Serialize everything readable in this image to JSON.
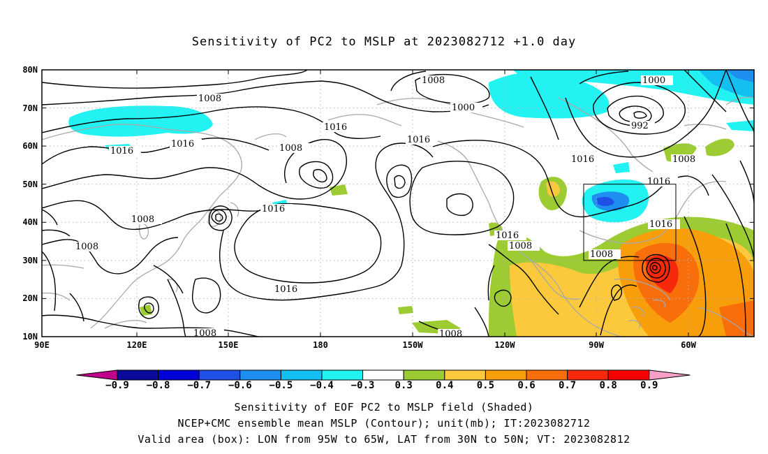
{
  "title": "Sensitivity of PC2 to MSLP at 2023082712 +1.0 day",
  "lat_labels": [
    "80N",
    "70N",
    "60N",
    "50N",
    "40N",
    "30N",
    "20N",
    "10N"
  ],
  "lon_labels": [
    "90E",
    "120E",
    "150E",
    "180",
    "150W",
    "120W",
    "90W",
    "60W"
  ],
  "contour_labels": [
    "1008",
    "1008",
    "1000",
    "1000",
    "992",
    "1008",
    "1016",
    "1016",
    "1016",
    "1016",
    "1016",
    "1008",
    "1016",
    "1016",
    "1008",
    "1016",
    "1008",
    "1008",
    "1008",
    "1016",
    "1008",
    "1016",
    "1008"
  ],
  "box": {
    "lon": [
      "95W",
      "65W"
    ],
    "lat": [
      "30N",
      "50N"
    ]
  },
  "colorbar": {
    "labels": [
      "-0.9",
      "-0.8",
      "-0.7",
      "-0.6",
      "-0.5",
      "-0.4",
      "-0.3",
      "0.3",
      "0.4",
      "0.5",
      "0.6",
      "0.7",
      "0.8",
      "0.9"
    ],
    "colors": [
      "#c0008c",
      "#0a0a9a",
      "#0000d8",
      "#1e4fe6",
      "#1e8ef0",
      "#12bff0",
      "#22f2f2",
      "#ffffff",
      "#9ccc32",
      "#fcc83c",
      "#f89e0a",
      "#f86e0a",
      "#f8280a",
      "#f80000",
      "#f8a0c8"
    ]
  },
  "captions": [
    "Sensitivity of EOF PC2 to MSLP field (Shaded)",
    "NCEP+CMC ensemble mean MSLP (Contour); unit(mb); IT:2023082712",
    "Valid area (box): LON from 95W to 65W, LAT from 30N to 50N; VT: 2023082812"
  ]
}
